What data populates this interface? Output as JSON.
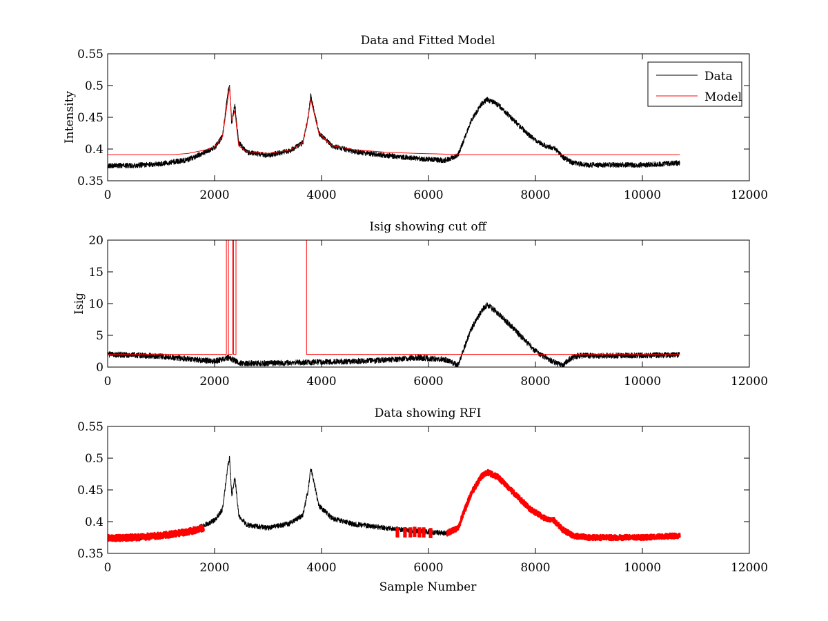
{
  "figure": {
    "background": "#ffffff"
  },
  "chart_data": [
    {
      "type": "line",
      "title": "Data and Fitted Model",
      "xlabel": "",
      "ylabel": "Intensity",
      "xlim": [
        0,
        12000
      ],
      "ylim": [
        0.35,
        0.55
      ],
      "xticks": [
        0,
        2000,
        4000,
        6000,
        8000,
        10000,
        12000
      ],
      "xtick_labels": [
        "0",
        "2000",
        "4000",
        "6000",
        "8000",
        "10000",
        "12000"
      ],
      "yticks": [
        0.35,
        0.4,
        0.45,
        0.5,
        0.55
      ],
      "ytick_labels": [
        "0.35",
        "0.4",
        "0.45",
        "0.5",
        "0.55"
      ],
      "grid": false,
      "legend": {
        "position": "top-right",
        "entries": [
          "Data",
          "Model"
        ]
      },
      "series": [
        {
          "name": "Data",
          "color": "#000000",
          "style": "line",
          "noise": 0.004,
          "x": [
            0,
            500,
            1000,
            1500,
            1800,
            2000,
            2150,
            2250,
            2280,
            2320,
            2380,
            2450,
            2600,
            3000,
            3400,
            3650,
            3750,
            3800,
            3850,
            3950,
            4200,
            4600,
            5200,
            5800,
            6300,
            6550,
            6800,
            7000,
            7100,
            7300,
            7600,
            7900,
            8200,
            8350,
            8500,
            8700,
            9000,
            9500,
            10000,
            10700
          ],
          "y": [
            0.374,
            0.374,
            0.377,
            0.383,
            0.394,
            0.402,
            0.42,
            0.49,
            0.5,
            0.44,
            0.47,
            0.41,
            0.395,
            0.39,
            0.397,
            0.41,
            0.45,
            0.485,
            0.465,
            0.425,
            0.405,
            0.396,
            0.39,
            0.385,
            0.382,
            0.39,
            0.445,
            0.472,
            0.478,
            0.47,
            0.445,
            0.42,
            0.404,
            0.402,
            0.388,
            0.378,
            0.375,
            0.375,
            0.375,
            0.378
          ]
        },
        {
          "name": "Model",
          "color": "#ff0000",
          "style": "line",
          "noise": 0,
          "x": [
            0,
            1200,
            1500,
            1800,
            2000,
            2150,
            2250,
            2280,
            2320,
            2380,
            2450,
            2600,
            3000,
            3400,
            3650,
            3750,
            3800,
            3850,
            3950,
            4200,
            4600,
            5200,
            5800,
            6300,
            6550,
            7000,
            8000,
            9000,
            10000,
            10700
          ],
          "y": [
            0.391,
            0.391,
            0.393,
            0.398,
            0.403,
            0.42,
            0.48,
            0.498,
            0.445,
            0.46,
            0.405,
            0.396,
            0.393,
            0.398,
            0.41,
            0.45,
            0.478,
            0.46,
            0.425,
            0.405,
            0.399,
            0.395,
            0.393,
            0.392,
            0.391,
            0.391,
            0.391,
            0.391,
            0.391,
            0.391
          ]
        }
      ]
    },
    {
      "type": "line",
      "title": "Isig showing cut off",
      "xlabel": "",
      "ylabel": "Isig",
      "xlim": [
        0,
        12000
      ],
      "ylim": [
        0,
        20
      ],
      "xticks": [
        0,
        2000,
        4000,
        6000,
        8000,
        10000,
        12000
      ],
      "xtick_labels": [
        "0",
        "2000",
        "4000",
        "6000",
        "8000",
        "10000",
        "12000"
      ],
      "yticks": [
        0,
        5,
        10,
        15,
        20
      ],
      "ytick_labels": [
        "0",
        "5",
        "10",
        "15",
        "20"
      ],
      "grid": false,
      "series": [
        {
          "color": "#000000",
          "style": "line",
          "noise": 0.45,
          "x": [
            0,
            500,
            1000,
            1500,
            2000,
            2250,
            2500,
            3000,
            3500,
            4000,
            5000,
            5800,
            6300,
            6550,
            6800,
            7000,
            7100,
            7300,
            7600,
            8000,
            8300,
            8500,
            8650,
            8800,
            9500,
            10700
          ],
          "y": [
            2.0,
            1.9,
            1.7,
            1.3,
            0.9,
            1.5,
            0.6,
            0.6,
            0.7,
            0.8,
            1.0,
            1.5,
            1.2,
            0.3,
            6.0,
            9.0,
            9.8,
            8.5,
            6.0,
            2.5,
            1.0,
            0.2,
            1.3,
            1.8,
            1.8,
            1.9
          ]
        },
        {
          "color": "#ff0000",
          "style": "line",
          "noise": 0,
          "x": [
            0,
            2220,
            2220,
            2260,
            2260,
            2330,
            2330,
            2355,
            2355,
            2400,
            2400,
            3720,
            3720,
            3870,
            3870,
            10700
          ],
          "y": [
            2,
            2,
            20,
            20,
            2,
            2,
            20,
            20,
            2,
            2,
            20,
            20,
            2,
            2,
            2,
            2
          ]
        }
      ]
    },
    {
      "type": "scatter",
      "title": "Data showing RFI",
      "xlabel": "Sample Number",
      "ylabel": "",
      "xlim": [
        0,
        12000
      ],
      "ylim": [
        0.35,
        0.55
      ],
      "xticks": [
        0,
        2000,
        4000,
        6000,
        8000,
        10000,
        12000
      ],
      "xtick_labels": [
        "0",
        "2000",
        "4000",
        "6000",
        "8000",
        "10000",
        "12000"
      ],
      "yticks": [
        0.35,
        0.4,
        0.45,
        0.5,
        0.55
      ],
      "ytick_labels": [
        "0.35",
        "0.4",
        "0.45",
        "0.5",
        "0.55"
      ],
      "grid": false,
      "series": [
        {
          "color": "#000000",
          "style": "line",
          "noise": 0.004,
          "x": [
            0,
            500,
            1000,
            1500,
            1800,
            2000,
            2150,
            2250,
            2280,
            2320,
            2380,
            2450,
            2600,
            3000,
            3400,
            3650,
            3750,
            3800,
            3850,
            3950,
            4200,
            4600,
            5200,
            5800,
            6300,
            6550,
            6800,
            7000,
            7100,
            7300,
            7600,
            7900,
            8200,
            8350,
            8500,
            8700,
            9000,
            9500,
            10000,
            10700
          ],
          "y": [
            0.374,
            0.374,
            0.377,
            0.383,
            0.394,
            0.402,
            0.42,
            0.49,
            0.5,
            0.44,
            0.47,
            0.41,
            0.395,
            0.39,
            0.397,
            0.41,
            0.45,
            0.485,
            0.465,
            0.425,
            0.405,
            0.396,
            0.39,
            0.385,
            0.382,
            0.39,
            0.445,
            0.472,
            0.478,
            0.47,
            0.445,
            0.42,
            0.404,
            0.402,
            0.388,
            0.378,
            0.375,
            0.375,
            0.375,
            0.378
          ]
        },
        {
          "color": "#ff0000",
          "style": "thick",
          "noise": 0.005,
          "x": [
            0,
            500,
            1000,
            1500,
            1800
          ],
          "y": [
            0.374,
            0.375,
            0.378,
            0.384,
            0.39
          ]
        },
        {
          "color": "#ff0000",
          "style": "thick",
          "noise": 0.004,
          "x": [
            6350,
            6550,
            6800,
            7000,
            7100,
            7300,
            7600,
            7900,
            8200,
            8350,
            8500,
            8700,
            9000,
            9500,
            10000,
            10700
          ],
          "y": [
            0.382,
            0.39,
            0.445,
            0.472,
            0.478,
            0.47,
            0.445,
            0.42,
            0.404,
            0.402,
            0.388,
            0.378,
            0.375,
            0.375,
            0.375,
            0.378
          ]
        },
        {
          "color": "#ff0000",
          "style": "bursts",
          "noise": 0,
          "x": [
            5420,
            5560,
            5660,
            5740,
            5830,
            5910,
            6040
          ],
          "y": [
            0.383,
            0.383,
            0.383,
            0.384,
            0.383,
            0.383,
            0.382
          ]
        }
      ]
    }
  ]
}
